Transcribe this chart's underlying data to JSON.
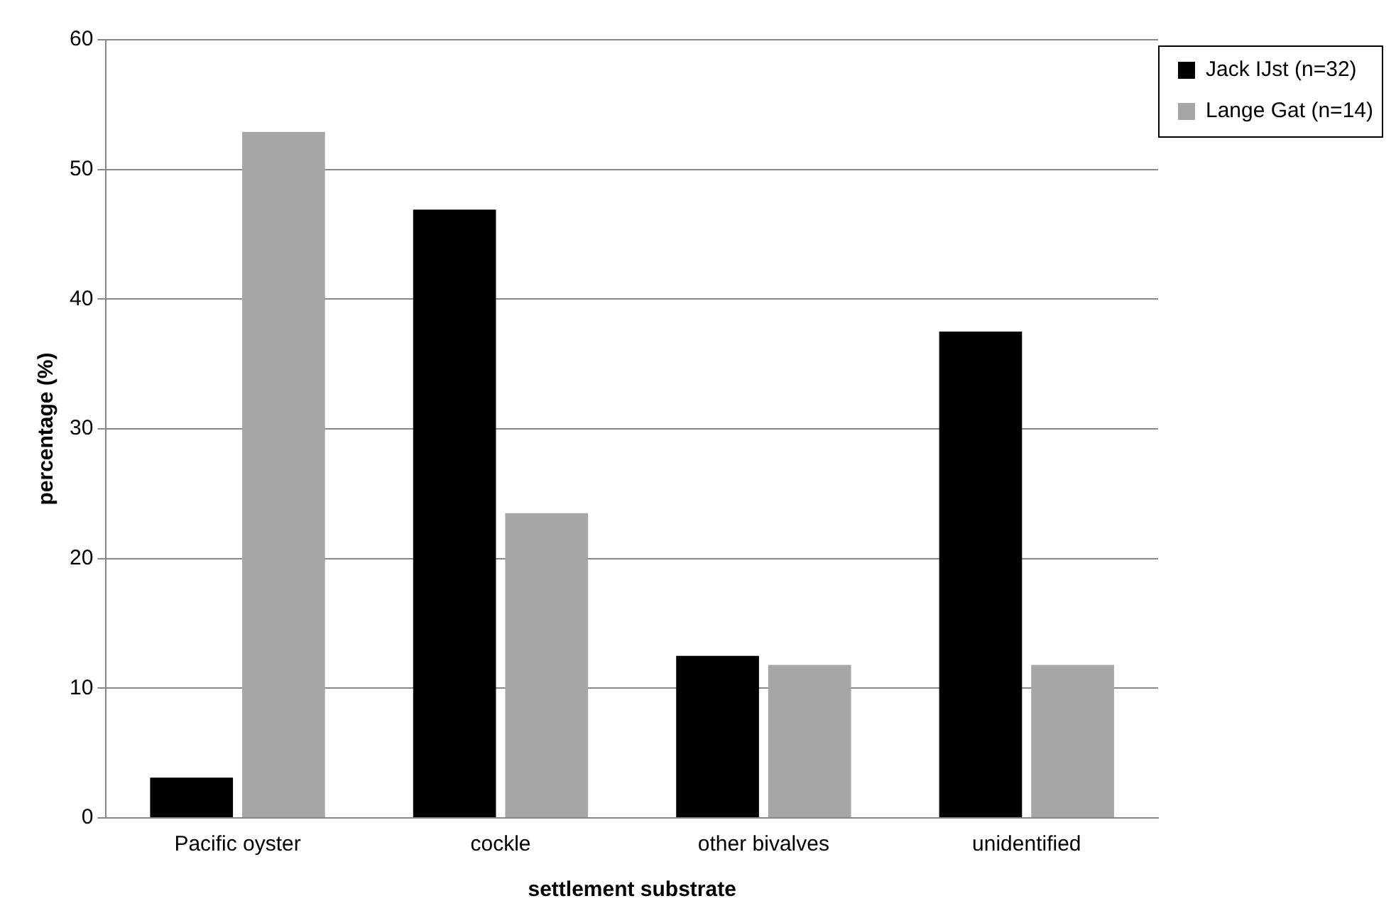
{
  "chart_data": {
    "type": "bar",
    "xlabel": "settlement substrate",
    "ylabel": "percentage (%)",
    "categories": [
      "Pacific oyster",
      "cockle",
      "other bivalves",
      "unidentified"
    ],
    "series": [
      {
        "name": "Jack IJst (n=32)",
        "color": "#000000",
        "values": [
          3.1,
          46.9,
          12.5,
          37.5
        ]
      },
      {
        "name": "Lange Gat (n=14)",
        "color": "#a6a6a6",
        "values": [
          52.9,
          23.5,
          11.8,
          11.8
        ]
      }
    ],
    "ylim": [
      0,
      60
    ],
    "yticks": [
      0,
      10,
      20,
      30,
      40,
      50,
      60
    ],
    "grid": "y",
    "legend": "top right"
  }
}
